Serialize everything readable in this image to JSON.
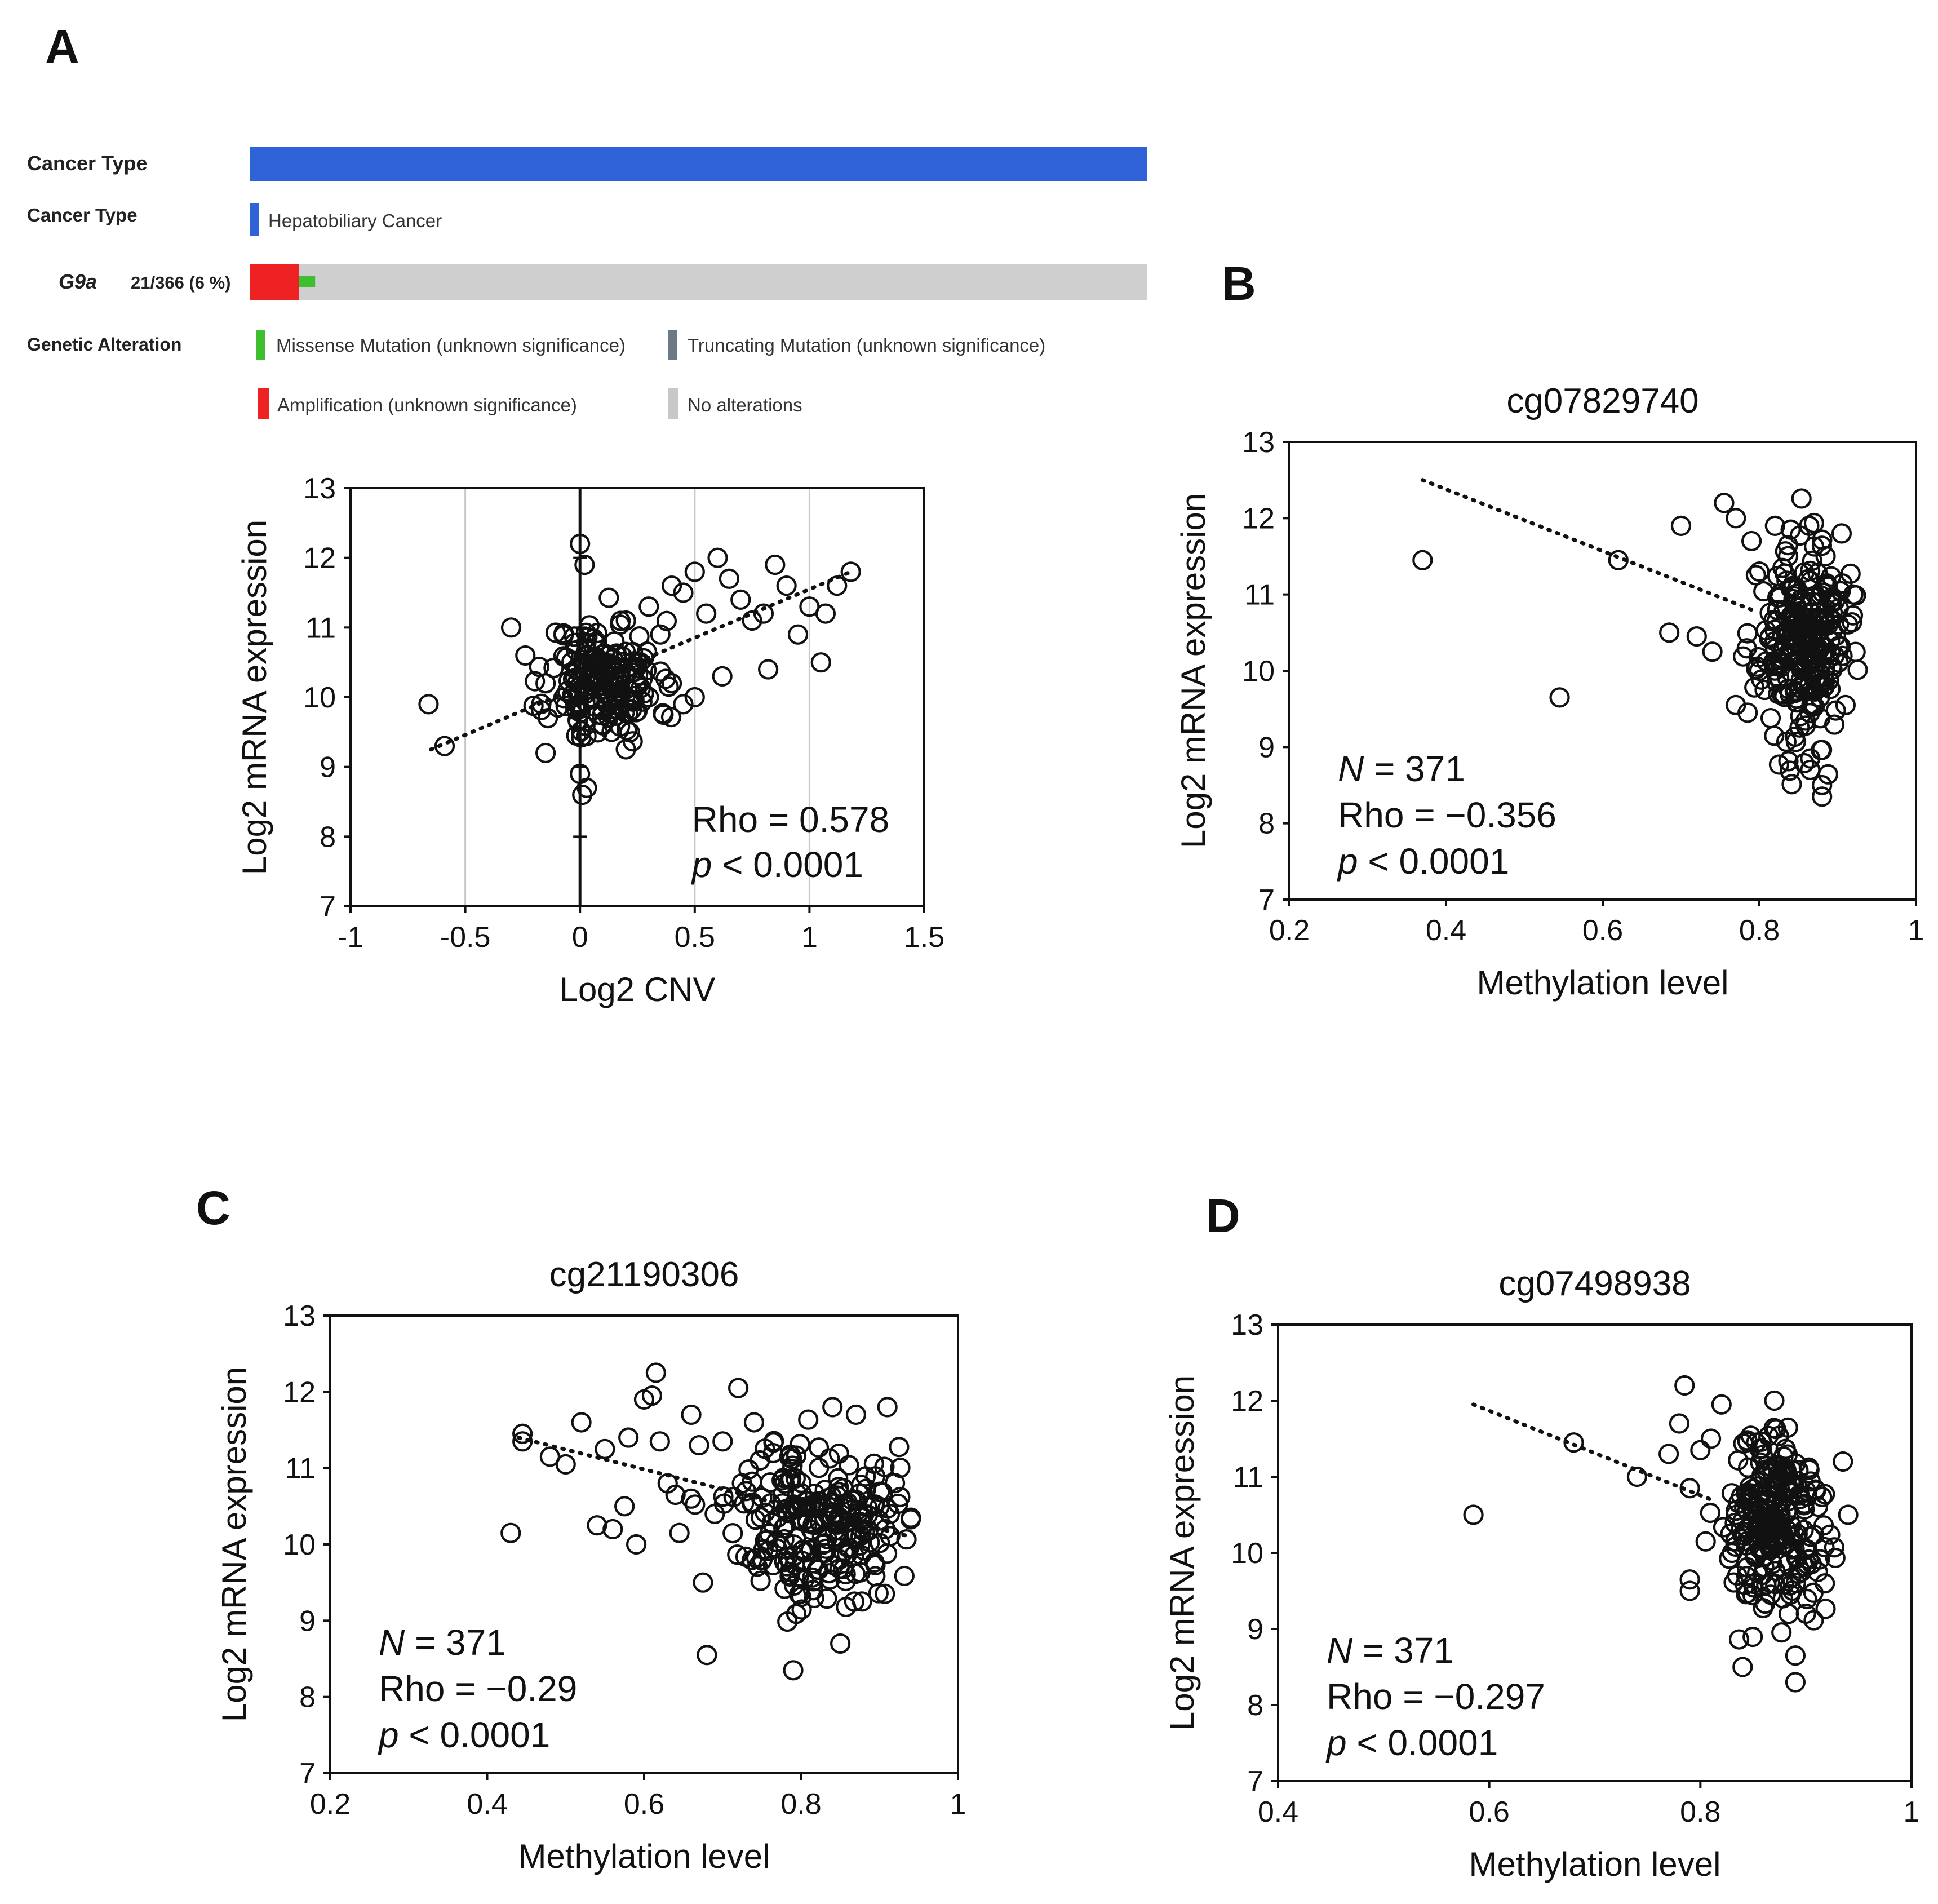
{
  "panel_labels": {
    "A": "A",
    "B": "B",
    "C": "C",
    "D": "D"
  },
  "oncoprint": {
    "row1_label": "Cancer Type",
    "row2_label": "Cancer Type",
    "cancer_name": "Hepatobiliary Cancer",
    "gene": "G9a",
    "gene_stat": "21/366 (6 %)",
    "legend_title": "Genetic Alteration",
    "legend": [
      {
        "label": "Missense Mutation (unknown significance)",
        "color": "#3fbf2f"
      },
      {
        "label": "Truncating Mutation (unknown significance)",
        "color": "#6d7a86"
      },
      {
        "label": "Amplification (unknown significance)",
        "color": "#ee2222"
      },
      {
        "label": "No alterations",
        "color": "#c8c8c8"
      }
    ],
    "colors": {
      "cancer_bar": "#2f62d6",
      "amplification": "#ee2222",
      "missense": "#3fbf2f",
      "no_alteration": "#cfcfcf"
    },
    "altered_fraction": 0.055,
    "missense_fraction": 0.018
  },
  "chart_data": [
    {
      "id": "A",
      "type": "scatter",
      "title": "",
      "xlabel": "Log2 CNV",
      "ylabel": "Log2 mRNA expression",
      "xlim": [
        -1,
        1.5
      ],
      "ylim": [
        7,
        13
      ],
      "xticks": [
        "-1",
        "-0.5",
        "0",
        "0.5",
        "1",
        "1.5"
      ],
      "xtick_values": [
        -1,
        -0.5,
        0,
        0.5,
        1,
        1.5
      ],
      "yticks": [
        "7",
        "8",
        "9",
        "10",
        "11",
        "12",
        "13"
      ],
      "ytick_values": [
        7,
        8,
        9,
        10,
        11,
        12,
        13
      ],
      "vertical_gridlines": [
        -0.5,
        0.5,
        1
      ],
      "zero_line_x": 0,
      "zero_line_range": [
        8,
        12
      ],
      "trend": {
        "x1": -0.65,
        "y1": 9.25,
        "x2": 1.18,
        "y2": 11.8
      },
      "stats": {
        "rho_label": "Rho = 0.578",
        "p_label_italic": "p",
        "p_label_rest": " < 0.0001"
      },
      "points": [
        [
          -0.66,
          9.9
        ],
        [
          -0.59,
          9.3
        ],
        [
          -0.3,
          11.0
        ],
        [
          -0.15,
          10.2
        ],
        [
          -0.15,
          9.2
        ],
        [
          0.0,
          12.2
        ],
        [
          0.02,
          11.9
        ],
        [
          0.01,
          8.6
        ],
        [
          0.0,
          8.9
        ],
        [
          0.03,
          8.7
        ],
        [
          0.1,
          10.5
        ],
        [
          0.15,
          10.8
        ],
        [
          0.2,
          11.1
        ],
        [
          0.25,
          10.5
        ],
        [
          0.3,
          11.3
        ],
        [
          0.35,
          10.9
        ],
        [
          0.4,
          11.6
        ],
        [
          0.45,
          11.5
        ],
        [
          0.5,
          11.8
        ],
        [
          0.55,
          11.2
        ],
        [
          0.6,
          12.0
        ],
        [
          0.65,
          11.7
        ],
        [
          0.7,
          11.4
        ],
        [
          0.75,
          11.1
        ],
        [
          0.8,
          11.2
        ],
        [
          0.85,
          11.9
        ],
        [
          0.9,
          11.6
        ],
        [
          0.95,
          10.9
        ],
        [
          1.0,
          11.3
        ],
        [
          1.05,
          10.5
        ],
        [
          1.07,
          11.2
        ],
        [
          1.12,
          11.6
        ],
        [
          1.18,
          11.8
        ],
        [
          0.62,
          10.3
        ],
        [
          0.45,
          9.9
        ],
        [
          0.82,
          10.4
        ],
        [
          0.3,
          10.0
        ],
        [
          0.25,
          9.8
        ],
        [
          0.4,
          10.2
        ],
        [
          0.5,
          10.0
        ]
      ],
      "cluster": {
        "cx": 0.1,
        "cy": 10.2,
        "sx": 0.12,
        "sy": 0.45,
        "n": 180,
        "seed": 11
      }
    },
    {
      "id": "B",
      "type": "scatter",
      "title": "cg07829740",
      "xlabel": "Methylation level",
      "ylabel": "Log2 mRNA expression",
      "xlim": [
        0.2,
        1.0
      ],
      "ylim": [
        7,
        13
      ],
      "xticks": [
        "0.2",
        "0.4",
        "0.6",
        "0.8",
        "1"
      ],
      "xtick_values": [
        0.2,
        0.4,
        0.6,
        0.8,
        1.0
      ],
      "yticks": [
        "7",
        "8",
        "9",
        "10",
        "11",
        "12",
        "13"
      ],
      "ytick_values": [
        7,
        8,
        9,
        10,
        11,
        12,
        13
      ],
      "trend": {
        "x1": 0.37,
        "y1": 12.5,
        "x2": 0.79,
        "y2": 10.8
      },
      "stats": {
        "n_label_italic": "N",
        "n_label_rest": " = 371",
        "rho_label": "Rho = −0.356",
        "p_label_italic": "p",
        "p_label_rest": " < 0.0001"
      },
      "points": [
        [
          0.37,
          11.45
        ],
        [
          0.545,
          9.65
        ],
        [
          0.62,
          11.45
        ],
        [
          0.685,
          10.5
        ],
        [
          0.7,
          11.9
        ],
        [
          0.72,
          10.45
        ],
        [
          0.74,
          10.25
        ],
        [
          0.755,
          12.2
        ],
        [
          0.77,
          12.0
        ],
        [
          0.77,
          9.55
        ],
        [
          0.785,
          9.45
        ],
        [
          0.8,
          10.0
        ],
        [
          0.88,
          8.5
        ],
        [
          0.88,
          8.35
        ],
        [
          0.865,
          8.7
        ],
        [
          0.865,
          8.85
        ],
        [
          0.905,
          11.8
        ],
        [
          0.82,
          11.9
        ],
        [
          0.84,
          11.85
        ],
        [
          0.91,
          9.55
        ],
        [
          0.92,
          11.0
        ],
        [
          0.79,
          11.7
        ],
        [
          0.8,
          11.3
        ]
      ],
      "cluster": {
        "cx": 0.855,
        "cy": 10.35,
        "sx": 0.028,
        "sy": 0.62,
        "n": 260,
        "seed": 23
      }
    },
    {
      "id": "C",
      "type": "scatter",
      "title": "cg21190306",
      "xlabel": "Methylation level",
      "ylabel": "Log2 mRNA expression",
      "xlim": [
        0.2,
        1.0
      ],
      "ylim": [
        7,
        13
      ],
      "xticks": [
        "0.2",
        "0.4",
        "0.6",
        "0.8",
        "1"
      ],
      "xtick_values": [
        0.2,
        0.4,
        0.6,
        0.8,
        1.0
      ],
      "yticks": [
        "7",
        "8",
        "9",
        "10",
        "11",
        "12",
        "13"
      ],
      "ytick_values": [
        7,
        8,
        9,
        10,
        11,
        12,
        13
      ],
      "trend": {
        "x1": 0.44,
        "y1": 11.4,
        "x2": 0.94,
        "y2": 10.1
      },
      "stats": {
        "n_label_italic": "N",
        "n_label_rest": " = 371",
        "rho_label": "Rho = −0.29",
        "p_label_italic": "p",
        "p_label_rest": " < 0.0001"
      },
      "points": [
        [
          0.445,
          11.45
        ],
        [
          0.445,
          11.35
        ],
        [
          0.43,
          10.15
        ],
        [
          0.48,
          11.15
        ],
        [
          0.5,
          11.05
        ],
        [
          0.52,
          11.6
        ],
        [
          0.54,
          10.25
        ],
        [
          0.55,
          11.25
        ],
        [
          0.56,
          10.2
        ],
        [
          0.575,
          10.5
        ],
        [
          0.58,
          11.4
        ],
        [
          0.59,
          10.0
        ],
        [
          0.6,
          11.9
        ],
        [
          0.61,
          11.95
        ],
        [
          0.615,
          12.25
        ],
        [
          0.62,
          11.35
        ],
        [
          0.63,
          10.8
        ],
        [
          0.64,
          10.65
        ],
        [
          0.645,
          10.15
        ],
        [
          0.66,
          11.7
        ],
        [
          0.67,
          11.3
        ],
        [
          0.675,
          9.5
        ],
        [
          0.68,
          8.55
        ],
        [
          0.7,
          11.35
        ],
        [
          0.72,
          12.05
        ],
        [
          0.73,
          10.7
        ],
        [
          0.74,
          11.6
        ],
        [
          0.77,
          10.35
        ],
        [
          0.79,
          8.35
        ],
        [
          0.85,
          8.7
        ],
        [
          0.94,
          10.35
        ],
        [
          0.91,
          11.8
        ],
        [
          0.87,
          11.7
        ],
        [
          0.84,
          11.8
        ],
        [
          0.66,
          10.6
        ],
        [
          0.69,
          10.4
        ]
      ],
      "cluster": {
        "cx": 0.82,
        "cy": 10.3,
        "sx": 0.05,
        "sy": 0.55,
        "n": 230,
        "seed": 37
      }
    },
    {
      "id": "D",
      "type": "scatter",
      "title": "cg07498938",
      "xlabel": "Methylation level",
      "ylabel": "Log2 mRNA expression",
      "xlim": [
        0.4,
        1.0
      ],
      "ylim": [
        7,
        13
      ],
      "xticks": [
        "0.4",
        "0.6",
        "0.8",
        "1"
      ],
      "xtick_values": [
        0.4,
        0.6,
        0.8,
        1.0
      ],
      "yticks": [
        "7",
        "8",
        "9",
        "10",
        "11",
        "12",
        "13"
      ],
      "ytick_values": [
        7,
        8,
        9,
        10,
        11,
        12,
        13
      ],
      "trend": {
        "x1": 0.585,
        "y1": 11.95,
        "x2": 0.81,
        "y2": 10.7
      },
      "stats": {
        "n_label_italic": "N",
        "n_label_rest": " = 371",
        "rho_label": "Rho = −0.297",
        "p_label_italic": "p",
        "p_label_rest": " < 0.0001"
      },
      "points": [
        [
          0.585,
          10.5
        ],
        [
          0.68,
          11.45
        ],
        [
          0.74,
          11.0
        ],
        [
          0.77,
          11.3
        ],
        [
          0.78,
          11.7
        ],
        [
          0.785,
          12.2
        ],
        [
          0.79,
          10.85
        ],
        [
          0.8,
          11.35
        ],
        [
          0.79,
          9.65
        ],
        [
          0.79,
          9.5
        ],
        [
          0.805,
          10.15
        ],
        [
          0.82,
          11.95
        ],
        [
          0.84,
          8.5
        ],
        [
          0.89,
          8.3
        ],
        [
          0.89,
          8.65
        ],
        [
          0.9,
          9.2
        ],
        [
          0.94,
          10.5
        ],
        [
          0.935,
          11.2
        ],
        [
          0.87,
          12.0
        ],
        [
          0.83,
          10.0
        ],
        [
          0.81,
          11.5
        ]
      ],
      "cluster": {
        "cx": 0.87,
        "cy": 10.35,
        "sx": 0.024,
        "sy": 0.6,
        "n": 240,
        "seed": 51
      }
    }
  ]
}
